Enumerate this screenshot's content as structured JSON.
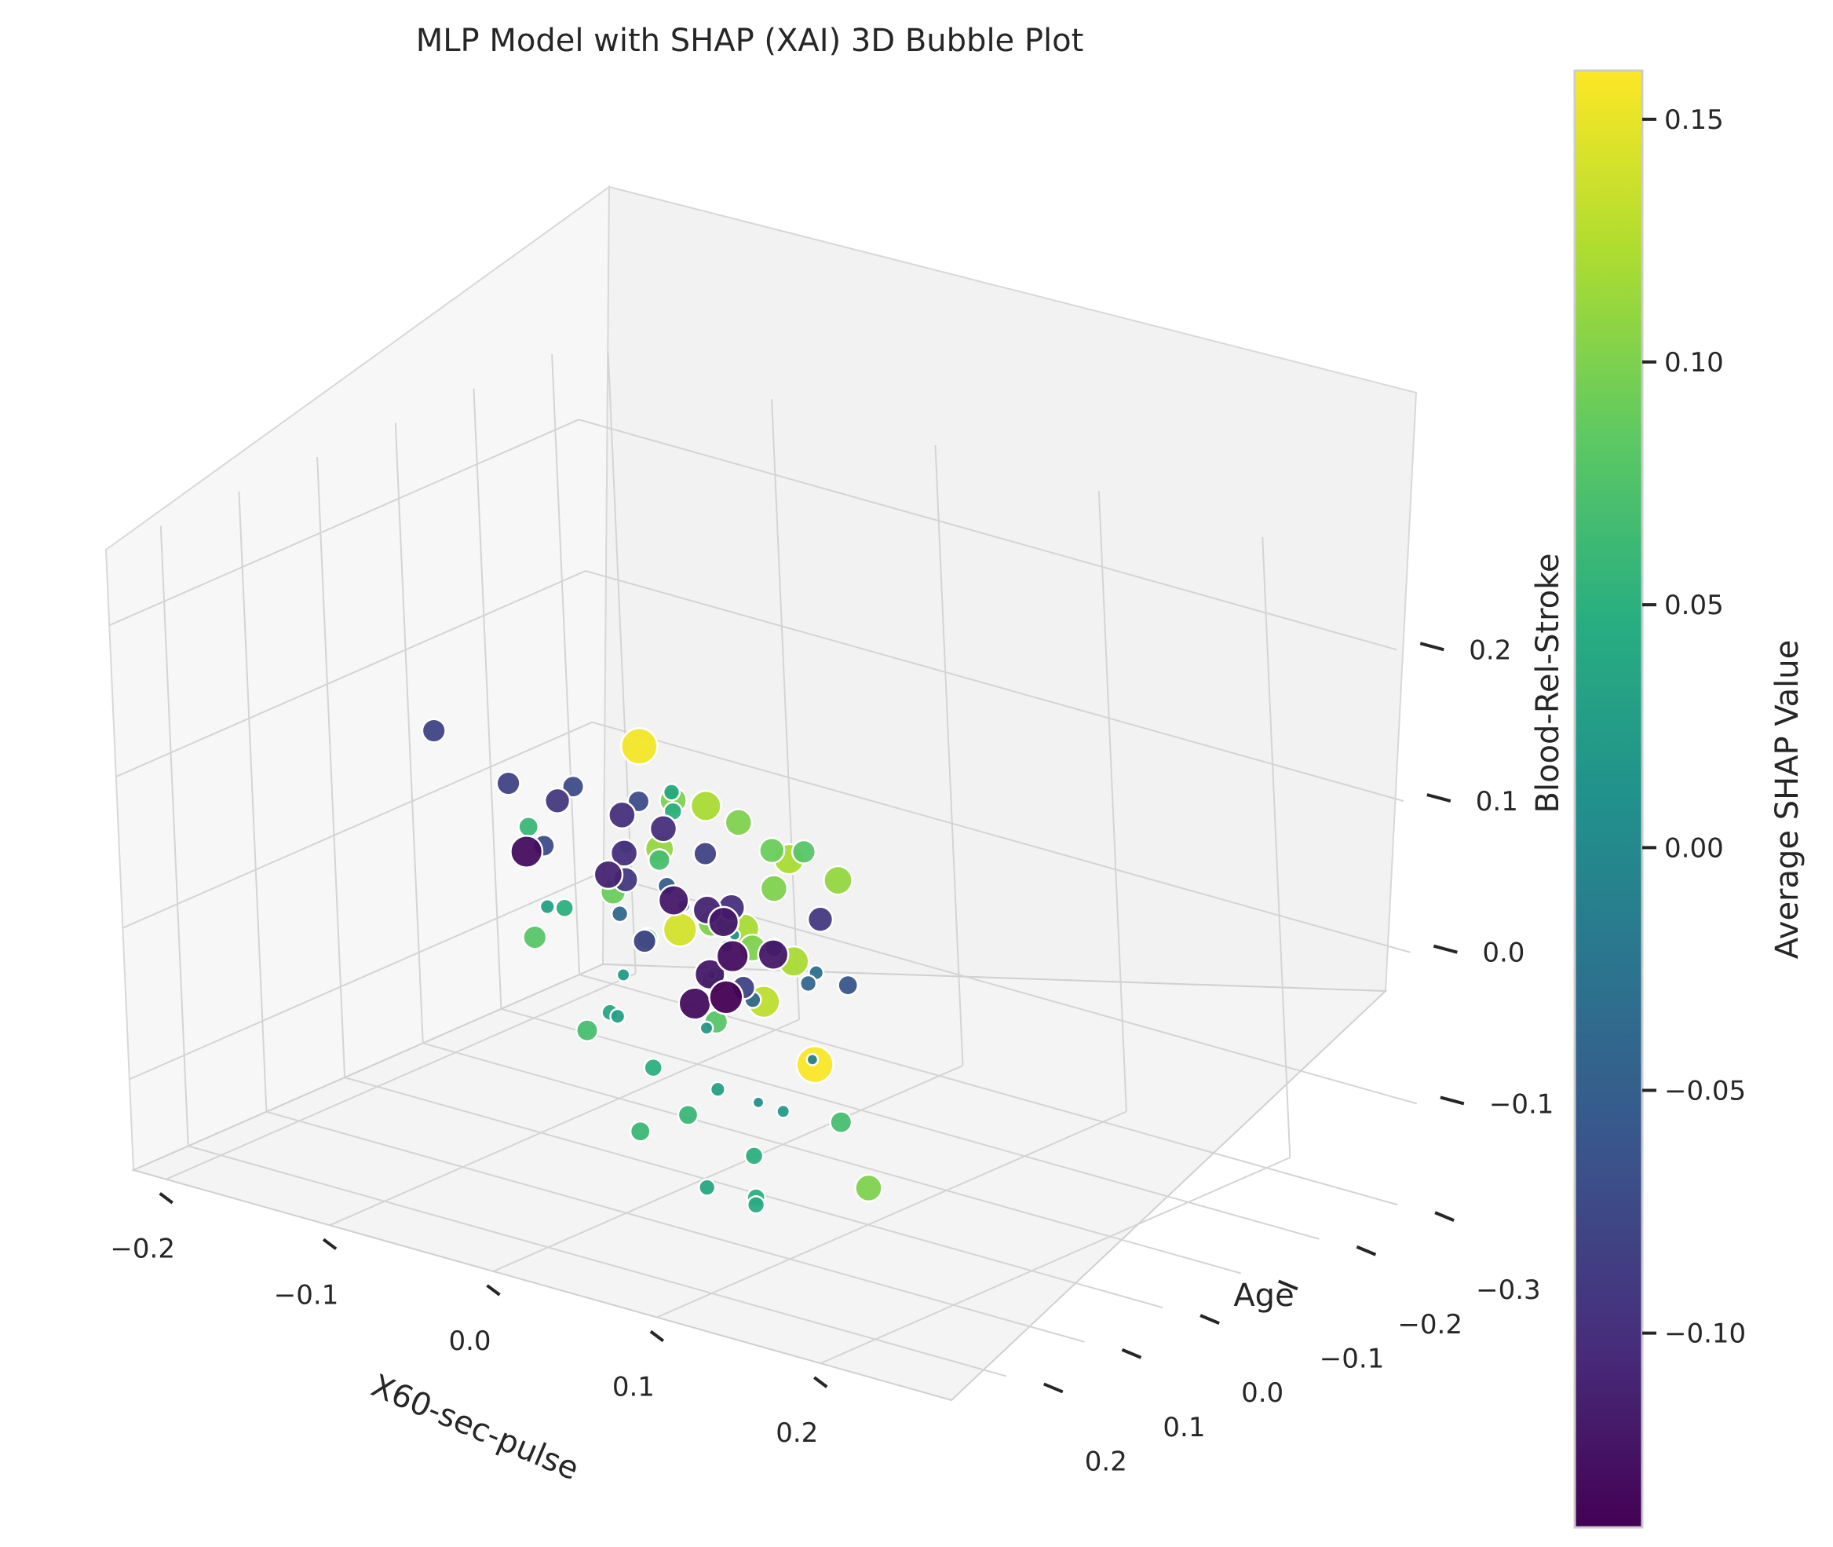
{
  "chart_data": {
    "type": "scatter",
    "subtype": "3d-bubble",
    "title": "MLP Model with SHAP (XAI) 3D Bubble Plot",
    "xlabel": "X60-sec-pulse",
    "ylabel": "Age",
    "zlabel": "Blood-Rel-Stroke",
    "colorbar_label": "Average SHAP Value",
    "colormap": "viridis",
    "xlim": [
      -0.22,
      0.28
    ],
    "ylim": [
      -0.33,
      0.27
    ],
    "zlim": [
      -0.16,
      0.25
    ],
    "x_ticks": [
      -0.2,
      -0.1,
      0.0,
      0.1,
      0.2
    ],
    "y_ticks": [
      -0.3,
      -0.2,
      -0.1,
      0.0,
      0.1,
      0.2
    ],
    "z_ticks": [
      -0.1,
      0.0,
      0.1,
      0.2
    ],
    "x_tick_labels": [
      "−0.2",
      "−0.1",
      "0.0",
      "0.1",
      "0.2"
    ],
    "y_tick_labels": [
      "−0.3",
      "−0.2",
      "−0.1",
      "0.0",
      "0.1",
      "0.2"
    ],
    "z_tick_labels": [
      "−0.1",
      "0.0",
      "0.1",
      "0.2"
    ],
    "colorbar_range": [
      -0.14,
      0.16
    ],
    "colorbar_ticks": [
      -0.1,
      -0.05,
      0.0,
      0.05,
      0.1,
      0.15
    ],
    "colorbar_tick_labels": [
      "−0.10",
      "−0.05",
      "0.00",
      "0.05",
      "0.10",
      "0.15"
    ],
    "grid": true,
    "point_edge_color": "#ffffff",
    "points": [
      [
        0.08,
        0.22,
        0.2,
        0.155
      ],
      [
        0.18,
        0.22,
        0.02,
        0.158
      ],
      [
        0.15,
        0.18,
        0.07,
        0.12
      ],
      [
        0.2,
        0.2,
        -0.06,
        0.1
      ],
      [
        0.12,
        0.26,
        0.1,
        0.14
      ],
      [
        0.07,
        0.18,
        0.12,
        0.11
      ],
      [
        0.02,
        0.24,
        0.06,
        0.08
      ],
      [
        0.1,
        0.18,
        0.08,
        0.1
      ],
      [
        0.11,
        0.2,
        0.05,
        0.09
      ],
      [
        0.05,
        0.2,
        0.09,
        0.09
      ],
      [
        -0.05,
        0.1,
        0.08,
        0.06
      ],
      [
        0.0,
        0.02,
        0.1,
        0.04
      ],
      [
        0.03,
        0.08,
        0.11,
        0.05
      ],
      [
        -0.08,
        0.02,
        0.0,
        0.03
      ],
      [
        0.04,
        0.22,
        0.0,
        0.07
      ],
      [
        0.08,
        0.24,
        -0.05,
        0.06
      ],
      [
        0.02,
        0.15,
        -0.01,
        0.04
      ],
      [
        0.06,
        0.1,
        -0.06,
        0.03
      ],
      [
        0.1,
        0.2,
        -0.09,
        0.04
      ],
      [
        0.12,
        0.18,
        -0.1,
        0.045
      ],
      [
        0.14,
        0.22,
        -0.08,
        0.05
      ],
      [
        0.16,
        0.15,
        -0.04,
        0.07
      ],
      [
        -0.02,
        0.05,
        -0.02,
        0.02
      ],
      [
        0.0,
        -0.02,
        -0.03,
        0.0
      ],
      [
        0.02,
        0.0,
        0.0,
        0.02
      ],
      [
        -0.03,
        -0.05,
        0.0,
        -0.02
      ],
      [
        -0.12,
        -0.1,
        0.04,
        -0.07
      ],
      [
        -0.18,
        -0.05,
        0.07,
        -0.08
      ],
      [
        -0.1,
        -0.12,
        -0.02,
        -0.09
      ],
      [
        -0.13,
        -0.18,
        0.0,
        -0.1
      ],
      [
        -0.15,
        -0.2,
        -0.05,
        -0.11
      ],
      [
        -0.08,
        -0.2,
        -0.06,
        -0.12
      ],
      [
        -0.06,
        -0.22,
        -0.08,
        -0.12
      ],
      [
        -0.1,
        -0.25,
        -0.1,
        -0.13
      ],
      [
        -0.12,
        -0.28,
        -0.14,
        -0.14
      ],
      [
        -0.2,
        -0.2,
        -0.05,
        -0.13
      ],
      [
        -0.05,
        -0.15,
        -0.03,
        -0.1
      ],
      [
        -0.04,
        -0.1,
        0.02,
        -0.08
      ],
      [
        -0.07,
        -0.08,
        0.05,
        -0.07
      ],
      [
        0.0,
        -0.1,
        -0.03,
        -0.05
      ],
      [
        0.02,
        -0.15,
        -0.06,
        -0.06
      ],
      [
        -0.02,
        -0.2,
        -0.04,
        -0.09
      ],
      [
        0.05,
        -0.05,
        -0.02,
        -0.03
      ],
      [
        0.06,
        0.05,
        -0.08,
        0.01
      ],
      [
        0.07,
        0.0,
        -0.06,
        -0.01
      ],
      [
        -0.02,
        0.12,
        0.04,
        0.05
      ],
      [
        0.12,
        0.14,
        0.1,
        0.1
      ],
      [
        0.14,
        0.16,
        0.13,
        0.12
      ],
      [
        0.09,
        0.12,
        0.13,
        0.1
      ],
      [
        0.1,
        0.1,
        0.11,
        0.09
      ],
      [
        0.06,
        0.14,
        0.14,
        0.1
      ],
      [
        0.16,
        0.24,
        0.06,
        0.13
      ],
      [
        -0.09,
        -0.15,
        0.01,
        -0.1
      ],
      [
        -0.11,
        -0.14,
        -0.01,
        -0.1
      ],
      [
        -0.07,
        -0.16,
        -0.04,
        -0.11
      ],
      [
        -0.14,
        -0.12,
        0.02,
        -0.09
      ],
      [
        -0.03,
        -0.12,
        -0.07,
        -0.08
      ],
      [
        0.01,
        -0.05,
        -0.05,
        -0.04
      ],
      [
        0.03,
        -0.08,
        -0.04,
        -0.04
      ],
      [
        0.08,
        0.12,
        0.06,
        0.08
      ],
      [
        0.11,
        0.15,
        0.06,
        0.1
      ],
      [
        0.13,
        0.2,
        0.09,
        0.12
      ],
      [
        0.09,
        0.16,
        0.15,
        0.12
      ],
      [
        0.05,
        0.16,
        0.05,
        0.07
      ],
      [
        0.07,
        0.2,
        -0.02,
        0.05
      ],
      [
        0.11,
        0.24,
        -0.03,
        0.06
      ],
      [
        0.13,
        0.2,
        -0.06,
        0.05
      ],
      [
        -0.16,
        -0.1,
        0.03,
        -0.08
      ],
      [
        -0.08,
        -0.18,
        -0.09,
        -0.12
      ],
      [
        -0.13,
        -0.24,
        -0.07,
        -0.12
      ],
      [
        -0.1,
        -0.2,
        -0.12,
        -0.13
      ],
      [
        -0.04,
        -0.05,
        0.01,
        -0.05
      ],
      [
        0.04,
        0.03,
        0.02,
        0.01
      ],
      [
        -0.01,
        0.06,
        0.07,
        0.03
      ],
      [
        0.1,
        0.06,
        0.1,
        0.08
      ],
      [
        0.15,
        0.12,
        0.11,
        0.11
      ],
      [
        0.04,
        0.12,
        0.09,
        0.07
      ],
      [
        0.03,
        0.05,
        -0.04,
        0.02
      ],
      [
        0.09,
        0.08,
        -0.07,
        0.02
      ],
      [
        -0.06,
        -0.03,
        -0.01,
        -0.04
      ],
      [
        -0.12,
        -0.06,
        0.01,
        -0.07
      ],
      [
        -0.08,
        -0.1,
        -0.05,
        -0.08
      ],
      [
        0.0,
        0.1,
        -0.03,
        0.03
      ],
      [
        0.12,
        0.22,
        0.03,
        0.08
      ]
    ]
  }
}
